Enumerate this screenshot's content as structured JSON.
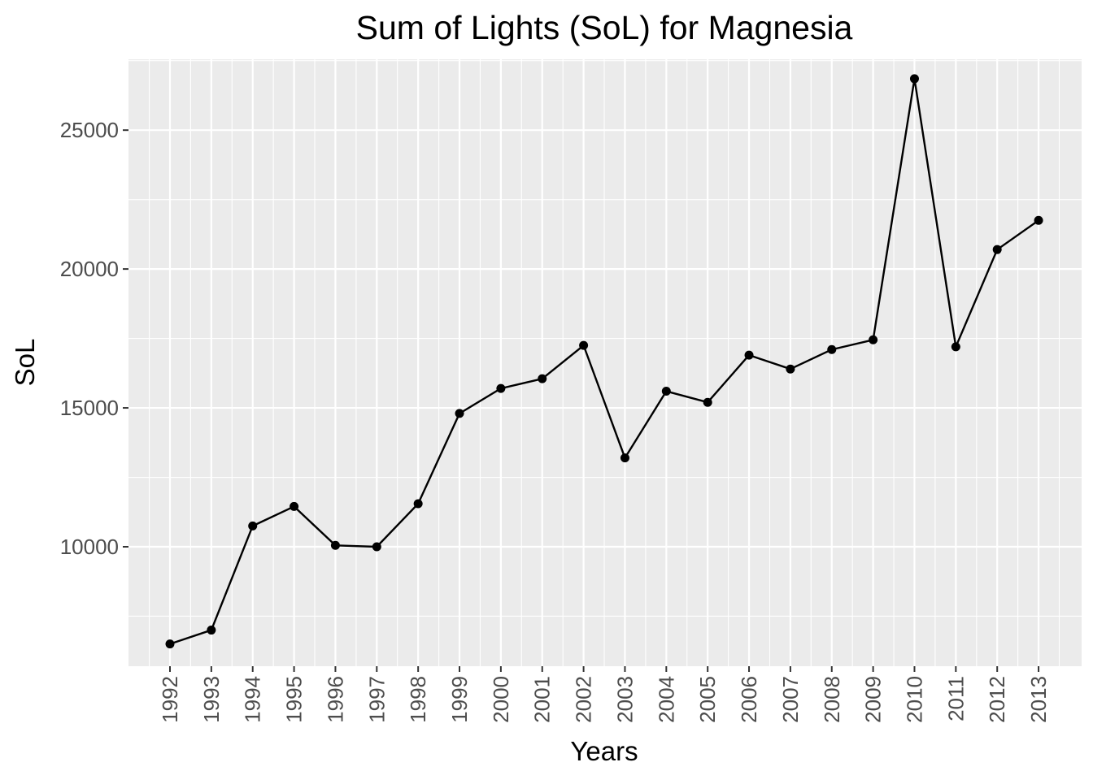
{
  "chart_data": {
    "type": "line",
    "title": "Sum of Lights (SoL) for Magnesia",
    "xlabel": "Years",
    "ylabel": "SoL",
    "categories": [
      "1992",
      "1993",
      "1994",
      "1995",
      "1996",
      "1997",
      "1998",
      "1999",
      "2000",
      "2001",
      "2002",
      "2003",
      "2004",
      "2005",
      "2006",
      "2007",
      "2008",
      "2009",
      "2010",
      "2011",
      "2012",
      "2013"
    ],
    "values": [
      6500,
      7000,
      10750,
      11450,
      10050,
      10000,
      11550,
      14800,
      15700,
      16050,
      17250,
      13200,
      15600,
      15200,
      16900,
      16400,
      17100,
      17450,
      26850,
      17200,
      20700,
      21750
    ],
    "yticks": [
      10000,
      15000,
      20000,
      25000
    ],
    "ytick_labels": [
      "10000",
      "15000",
      "20000",
      "25000"
    ],
    "ylim": [
      5700,
      27550
    ],
    "grid": true,
    "legend": "none",
    "colors": {
      "panel": "#ebebeb",
      "grid_major": "#ffffff",
      "line": "#000000",
      "point": "#000000",
      "axis_text": "#4d4d4d",
      "title_text": "#000000"
    }
  }
}
